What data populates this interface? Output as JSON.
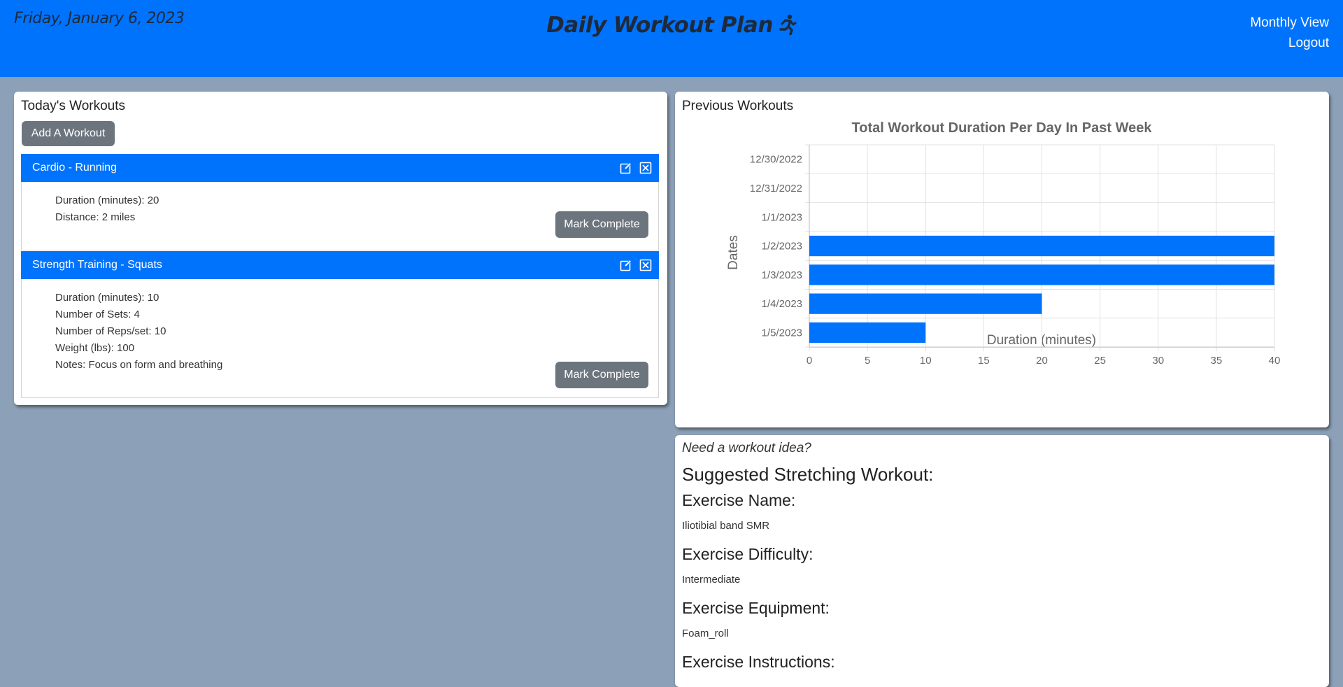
{
  "header": {
    "date": "Friday, January 6, 2023",
    "title": "Daily Workout Plan",
    "nav": {
      "monthly": "Monthly View",
      "logout": "Logout"
    },
    "color": "#0073fc"
  },
  "today": {
    "title": "Today's Workouts",
    "add_button": "Add A Workout",
    "workouts": [
      {
        "name": "Cardio - Running",
        "details": [
          "Duration (minutes): 20",
          "Distance: 2 miles"
        ],
        "action": "Mark Complete",
        "icons": [
          "edit-icon",
          "close-icon"
        ]
      },
      {
        "name": "Strength Training - Squats",
        "details": [
          "Duration (minutes): 10",
          "Number of Sets: 4",
          "Number of Reps/set: 10",
          "Weight (lbs): 100",
          "Notes: Focus on form and breathing"
        ],
        "action": "Mark Complete",
        "icons": [
          "edit-icon",
          "close-icon"
        ]
      }
    ]
  },
  "previous": {
    "title": "Previous Workouts"
  },
  "chart_data": {
    "type": "bar",
    "orientation": "horizontal",
    "title": "Total Workout Duration Per Day In Past Week",
    "xlabel": "Duration (minutes)",
    "ylabel": "Dates",
    "categories": [
      "12/30/2022",
      "12/31/2022",
      "1/1/2023",
      "1/2/2023",
      "1/3/2023",
      "1/4/2023",
      "1/5/2023"
    ],
    "values": [
      0,
      0,
      0,
      40,
      40,
      20,
      10
    ],
    "xlim": [
      0,
      40
    ],
    "xticks": [
      0,
      5,
      10,
      15,
      20,
      25,
      30,
      35,
      40
    ],
    "grid": true,
    "bar_color": "#0073fc"
  },
  "suggestion": {
    "prompt": "Need a workout idea?",
    "title": "Suggested Stretching Workout:",
    "name_label": "Exercise Name:",
    "name_value": "Iliotibial band SMR",
    "difficulty_label": "Exercise Difficulty:",
    "difficulty_value": "Intermediate",
    "equipment_label": "Exercise Equipment:",
    "equipment_value": "Foam_roll",
    "instructions_label": "Exercise Instructions:"
  }
}
